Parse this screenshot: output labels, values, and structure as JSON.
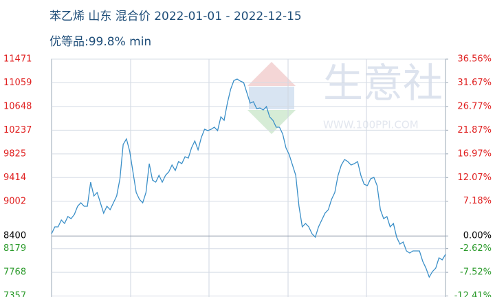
{
  "chart_data": {
    "type": "line",
    "title": "苯乙烯 山东 混合价 2022-01-01 - 2022-12-15",
    "subtitle": "优等品:99.8% min",
    "watermark": "生意社",
    "watermark_url": "WWW.100PPI.COM",
    "categories": [
      null,
      null,
      null,
      null,
      null,
      null,
      null,
      null,
      null,
      null,
      null,
      null,
      null,
      null,
      null,
      null,
      null,
      null,
      null,
      null,
      null,
      null,
      null,
      null,
      null,
      null,
      null,
      null,
      null,
      null,
      null,
      null,
      null,
      null,
      null,
      null,
      null,
      null,
      null,
      null,
      null,
      null,
      null,
      null,
      null,
      null,
      null,
      null,
      null,
      null,
      null,
      null,
      null,
      null,
      null,
      null,
      null,
      null,
      null,
      null,
      null,
      null,
      null,
      null,
      null,
      null,
      null,
      null,
      null,
      null,
      null,
      null,
      null,
      null,
      null,
      null,
      null,
      null,
      null,
      null,
      null,
      null,
      null,
      null,
      null,
      null,
      null,
      null,
      null,
      null,
      null,
      null,
      null,
      null,
      null,
      null,
      null,
      null,
      null,
      null,
      null,
      null,
      null,
      null,
      null,
      null,
      null,
      null,
      null,
      null,
      null,
      null,
      null,
      null,
      null,
      null,
      null,
      null,
      null,
      null,
      null,
      null
    ],
    "series": [
      {
        "color": "#3a8fc8",
        "values": [
          8438,
          8558,
          8558,
          8677,
          8617,
          8737,
          8701,
          8773,
          8916,
          8976,
          8916,
          8916,
          9334,
          9095,
          9155,
          8976,
          8796,
          8916,
          8856,
          8976,
          9095,
          9393,
          9990,
          10086,
          9871,
          9513,
          9155,
          9035,
          8976,
          9155,
          9656,
          9370,
          9334,
          9453,
          9334,
          9453,
          9513,
          9632,
          9537,
          9692,
          9656,
          9776,
          9752,
          9931,
          10050,
          9895,
          10110,
          10253,
          10229,
          10253,
          10289,
          10229,
          10468,
          10408,
          10707,
          10946,
          11101,
          11125,
          11089,
          11065,
          10886,
          10707,
          10731,
          10611,
          10623,
          10587,
          10647,
          10468,
          10408,
          10289,
          10289,
          10170,
          9931,
          9811,
          9632,
          9453,
          8916,
          8558,
          8617,
          8558,
          8438,
          8379,
          8558,
          8677,
          8796,
          8856,
          9035,
          9155,
          9453,
          9632,
          9728,
          9692,
          9632,
          9656,
          9692,
          9453,
          9298,
          9274,
          9393,
          9417,
          9274,
          8856,
          8701,
          8737,
          8558,
          8617,
          8379,
          8259,
          8295,
          8140,
          8104,
          8140,
          8140,
          8140,
          7961,
          7841,
          7686,
          7782,
          7841,
          8020,
          7985,
          8080
        ]
      }
    ],
    "ylim": [
      7340,
      11471
    ],
    "yticks": [
      11471,
      11059,
      10648,
      10237,
      9825,
      9414,
      9002,
      8400,
      8179,
      7768,
      7357
    ],
    "y2lim": [
      -12.62,
      36.56
    ],
    "y2ticks": [
      {
        "value": 36.56,
        "label": "36.56%"
      },
      {
        "value": 31.67,
        "label": "31.67%"
      },
      {
        "value": 26.77,
        "label": "26.77%"
      },
      {
        "value": 21.87,
        "label": "21.87%"
      },
      {
        "value": 16.97,
        "label": "16.97%"
      },
      {
        "value": 12.07,
        "label": "12.07%"
      },
      {
        "value": 7.18,
        "label": "7.18%"
      },
      {
        "value": 0,
        "label": "0.00%"
      },
      {
        "value": -2.62,
        "label": "-2.62%"
      },
      {
        "value": -7.52,
        "label": "-7.52%"
      },
      {
        "value": -12.41,
        "label": "-12.41%"
      }
    ],
    "up_color": "#e02020",
    "down_color": "#2a9a2a",
    "flat_color": "#000000",
    "grid": true
  }
}
